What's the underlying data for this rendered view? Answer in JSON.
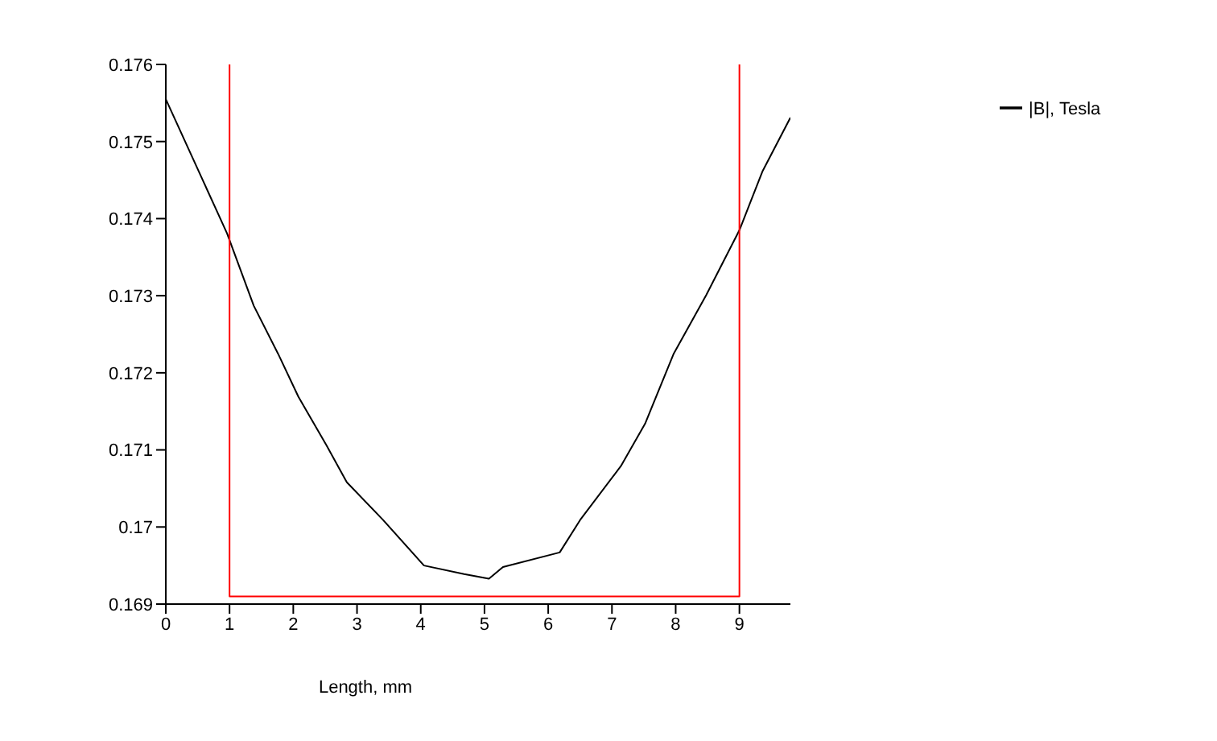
{
  "chart_data": {
    "type": "line",
    "xlabel": "Length, mm",
    "xlim": [
      0,
      9.8
    ],
    "xticks": [
      0,
      1,
      2,
      3,
      4,
      5,
      6,
      7,
      8,
      9
    ],
    "ylim": [
      0.169,
      0.176
    ],
    "yticks": [
      0.169,
      0.17,
      0.171,
      0.172,
      0.173,
      0.174,
      0.175,
      0.176
    ],
    "grid": false,
    "legend": "top right",
    "marker": "none",
    "line_style": "solid",
    "series": [
      {
        "name": "|B|, Tesla",
        "color": "#000000",
        "x": [
          0,
          0.96,
          1.38,
          1.76,
          2.08,
          2.52,
          2.84,
          3.41,
          4.05,
          4.68,
          5.07,
          5.29,
          6.18,
          6.5,
          7.14,
          7.52,
          7.97,
          8.48,
          9.0,
          9.36,
          9.8
        ],
        "values": [
          0.17555,
          0.17381,
          0.17287,
          0.17225,
          0.17169,
          0.17106,
          0.17058,
          0.17009,
          0.1695,
          0.16939,
          0.16933,
          0.16948,
          0.16967,
          0.17009,
          0.17079,
          0.17134,
          0.17225,
          0.17301,
          0.17385,
          0.17461,
          0.17531
        ]
      },
      {
        "color": "#ff0000",
        "x": [
          1,
          1,
          9,
          9
        ],
        "values": [
          0.176,
          0.1691,
          0.1691,
          0.176
        ]
      }
    ]
  }
}
